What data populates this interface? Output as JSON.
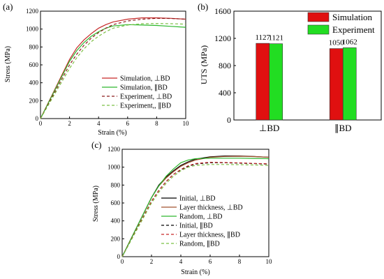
{
  "chart_data": [
    {
      "panel_label": "(a)",
      "type": "line",
      "xlabel": "Strain (%)",
      "ylabel": "Stress (MPa)",
      "xlim": [
        0,
        10
      ],
      "ylim": [
        0,
        1200
      ],
      "xticks": [
        0,
        2,
        4,
        6,
        8,
        10
      ],
      "yticks": [
        0,
        200,
        400,
        600,
        800,
        1000,
        1200
      ],
      "grid": false,
      "legend_placement": "bottom-right",
      "series": [
        {
          "name": "Simulation, ⊥BD",
          "color": "#c62828",
          "dash": false,
          "x": [
            0,
            1,
            2,
            2.5,
            3,
            3.5,
            4,
            4.5,
            5,
            6,
            7,
            8,
            9,
            10
          ],
          "y": [
            0,
            330,
            660,
            790,
            880,
            950,
            1010,
            1050,
            1080,
            1110,
            1125,
            1125,
            1120,
            1110
          ]
        },
        {
          "name": "Simulation, ∥BD",
          "color": "#2db82d",
          "dash": false,
          "x": [
            0,
            1,
            2,
            2.5,
            3,
            3.5,
            4,
            4.5,
            5,
            6,
            7,
            8,
            9,
            10
          ],
          "y": [
            0,
            320,
            640,
            760,
            850,
            920,
            970,
            1010,
            1035,
            1050,
            1045,
            1040,
            1030,
            1020
          ]
        },
        {
          "name": "Experiment, ⊥BD",
          "color": "#8b1a1a",
          "dash": true,
          "x": [
            0,
            1,
            2,
            2.5,
            3,
            3.5,
            4,
            4.5,
            5,
            6,
            7,
            8,
            9,
            10
          ],
          "y": [
            0,
            300,
            600,
            720,
            820,
            900,
            960,
            1010,
            1050,
            1090,
            1110,
            1120,
            1118,
            1110
          ]
        },
        {
          "name": "Experiment,, ∥BD",
          "color": "#7bc043",
          "dash": true,
          "x": [
            0,
            1,
            2,
            2.5,
            3,
            3.5,
            4,
            4.5,
            5,
            6,
            7,
            8,
            9,
            10
          ],
          "y": [
            0,
            280,
            560,
            680,
            780,
            860,
            920,
            970,
            1010,
            1045,
            1060,
            1062,
            1060,
            1055
          ]
        }
      ]
    },
    {
      "panel_label": "(b)",
      "type": "bar",
      "ylabel": "UTS (MPa)",
      "categories": [
        "⊥BD",
        "∥BD"
      ],
      "ylim": [
        0,
        1600
      ],
      "yticks": [
        0,
        400,
        800,
        1200,
        1600
      ],
      "grid": false,
      "legend_placement": "top-right",
      "series": [
        {
          "name": "Simulation",
          "color": "#e01010",
          "values": [
            1127,
            1050
          ]
        },
        {
          "name": "Experiment",
          "color": "#22dd22",
          "values": [
            1121,
            1062
          ]
        }
      ]
    },
    {
      "panel_label": "(c)",
      "type": "line",
      "xlabel": "Strain (%)",
      "ylabel": "Stress (MPa)",
      "xlim": [
        0,
        10
      ],
      "ylim": [
        0,
        1200
      ],
      "xticks": [
        0,
        2,
        4,
        6,
        8,
        10
      ],
      "yticks": [
        0,
        200,
        400,
        600,
        800,
        1000,
        1200
      ],
      "grid": false,
      "legend_placement": "bottom-right",
      "series": [
        {
          "name": "Initial, ⊥BD",
          "color": "#000000",
          "dash": false,
          "x": [
            0,
            1,
            2,
            2.5,
            3,
            3.5,
            4,
            4.5,
            5,
            6,
            7,
            8,
            9,
            10
          ],
          "y": [
            0,
            330,
            660,
            800,
            890,
            960,
            1020,
            1060,
            1090,
            1115,
            1125,
            1125,
            1120,
            1110
          ]
        },
        {
          "name": "Layer thickness, ⊥BD",
          "color": "#a0522d",
          "dash": false,
          "x": [
            0,
            1,
            2,
            2.5,
            3,
            3.5,
            4,
            4.5,
            5,
            6,
            7,
            8,
            9,
            10
          ],
          "y": [
            0,
            330,
            660,
            790,
            880,
            950,
            1010,
            1050,
            1080,
            1110,
            1120,
            1122,
            1118,
            1110
          ]
        },
        {
          "name": "Random, ⊥BD",
          "color": "#2db82d",
          "dash": false,
          "x": [
            0,
            1,
            2,
            2.5,
            3,
            3.5,
            4,
            4.5,
            5,
            6,
            7,
            8,
            9,
            10
          ],
          "y": [
            0,
            330,
            660,
            790,
            900,
            980,
            1050,
            1080,
            1095,
            1100,
            1100,
            1100,
            1098,
            1095
          ]
        },
        {
          "name": "Initial, ∥BD",
          "color": "#000000",
          "dash": true,
          "x": [
            0,
            1,
            2,
            2.5,
            3,
            3.5,
            4,
            4.5,
            5,
            6,
            7,
            8,
            9,
            10
          ],
          "y": [
            0,
            310,
            620,
            740,
            840,
            920,
            970,
            1010,
            1035,
            1050,
            1050,
            1045,
            1040,
            1035
          ]
        },
        {
          "name": "Layer thickness, ∥BD",
          "color": "#c62828",
          "dash": true,
          "x": [
            0,
            1,
            2,
            2.5,
            3,
            3.5,
            4,
            4.5,
            5,
            6,
            7,
            8,
            9,
            10
          ],
          "y": [
            0,
            310,
            620,
            740,
            840,
            920,
            975,
            1015,
            1040,
            1055,
            1052,
            1048,
            1042,
            1038
          ]
        },
        {
          "name": "Random, ∥BD",
          "color": "#7bc043",
          "dash": true,
          "x": [
            0,
            1,
            2,
            2.5,
            3,
            3.5,
            4,
            4.5,
            5,
            6,
            7,
            8,
            9,
            10
          ],
          "y": [
            0,
            300,
            600,
            720,
            820,
            900,
            960,
            1000,
            1020,
            1030,
            1030,
            1028,
            1025,
            1020
          ]
        }
      ]
    }
  ]
}
